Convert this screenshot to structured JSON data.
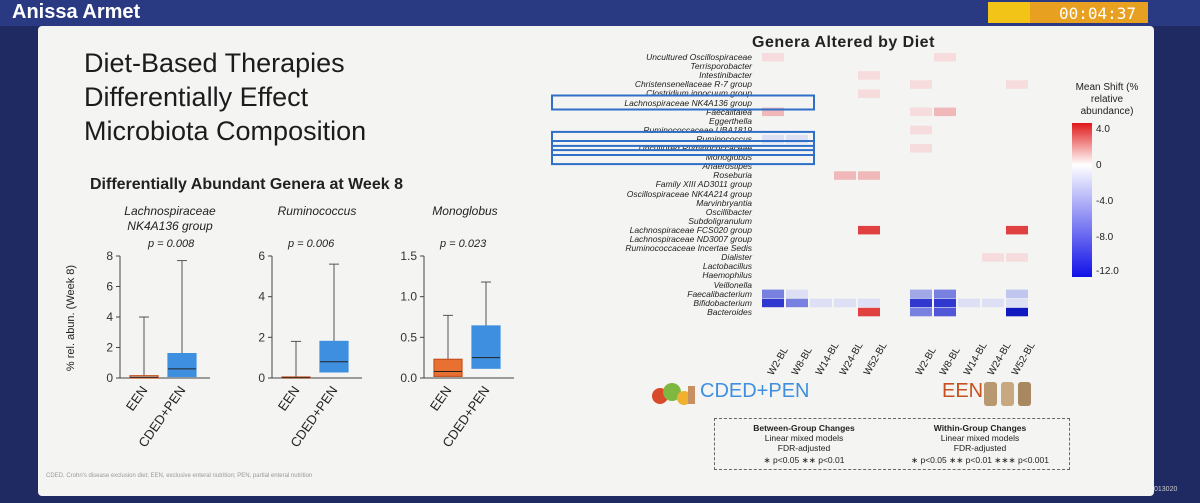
{
  "window": {
    "speaker": "Anissa Armet",
    "timer": "00:04:37"
  },
  "slide": {
    "title": [
      "Diet-Based Therapies",
      "Differentially Effect",
      "Microbiota Composition"
    ],
    "subtitle": "Differentially Abundant Genera at Week 8",
    "footnote": "CDED, Crohn's disease exclusion diet; EEN, exclusive enteral nutrition; PEN, partial enteral nutrition",
    "slide_number": "013020"
  },
  "heatmap": {
    "title": "Genera Altered by Diet",
    "genera": [
      "Uncultured Oscillospiraceae",
      "Terrisporobacter",
      "Intestinibacter",
      "Christensenellaceae R-7 group",
      "Clostridium innocuum group",
      "Lachnospiraceae NK4A136 group",
      "Faecalitalea",
      "Eggerthella",
      "Ruminococcaceae UBA1819",
      "Ruminococcus",
      "Uncultured Ruminococcaceae",
      "Monoglobus",
      "Anaerostipes",
      "Roseburia",
      "Family XIII AD3011 group",
      "Oscillospiraceae NK4A214 group",
      "Marvinbryantia",
      "Oscillibacter",
      "Subdoligranulum",
      "Lachnospiraceae FCS020 group",
      "Lachnospiraceae ND3007 group",
      "Ruminococcaceae Incertae Sedis",
      "Dialister",
      "Lactobacillus",
      "Haemophilus",
      "Veillonella",
      "Faecalibacterium",
      "Bifidobacterium",
      "Bacteroides"
    ],
    "highlighted": [
      "Lachnospiraceae NK4A136 group",
      "Ruminococcus",
      "Uncultured Ruminococcaceae",
      "Monoglobus"
    ],
    "columns": [
      "W2-BL",
      "W8-BL",
      "W14-BL",
      "W24-BL",
      "W52-BL",
      "W2-BL",
      "W8-BL",
      "W14-BL",
      "W24-BL",
      "W52-BL"
    ],
    "groups": [
      {
        "label": "CDED+PEN",
        "color": "#3f8fe0"
      },
      {
        "label": "EEN",
        "color": "#c8501e"
      }
    ],
    "legend": {
      "title": "Mean Shift (% relative abundance)",
      "ticks": [
        "4.0",
        "0",
        "-4.0",
        "-8.0",
        "-12.0"
      ]
    },
    "notes": {
      "between": {
        "title": "Between-Group Changes",
        "l1": "Linear mixed models",
        "l2": "FDR-adjusted",
        "l3": "∗ p<0.05    ∗∗ p<0.01"
      },
      "within": {
        "title": "Within-Group Changes",
        "l1": "Linear mixed models",
        "l2": "FDR-adjusted",
        "l3": "∗ p<0.05    ∗∗ p<0.01    ∗∗∗ p<0.001"
      }
    },
    "cells": [
      [
        1,
        0,
        0,
        0,
        0,
        0,
        1,
        0,
        0,
        0
      ],
      [
        0,
        0,
        0,
        0,
        0,
        0,
        0,
        0,
        0,
        0
      ],
      [
        0,
        0,
        0,
        0,
        1,
        0,
        0,
        0,
        0,
        0
      ],
      [
        0,
        0,
        0,
        0,
        0,
        1,
        0,
        0,
        0,
        1
      ],
      [
        0,
        0,
        0,
        0,
        1,
        0,
        0,
        0,
        0,
        0
      ],
      [
        0,
        0,
        0,
        0,
        0,
        0,
        0,
        0,
        0,
        0
      ],
      [
        2,
        0,
        0,
        0,
        0,
        1,
        2,
        0,
        0,
        0
      ],
      [
        0,
        0,
        0,
        0,
        0,
        0,
        0,
        0,
        0,
        0
      ],
      [
        0,
        0,
        0,
        0,
        0,
        1,
        0,
        0,
        0,
        0
      ],
      [
        -1,
        -1,
        0,
        0,
        0,
        0,
        0,
        0,
        0,
        0
      ],
      [
        0,
        0,
        0,
        0,
        0,
        1,
        0,
        0,
        0,
        0
      ],
      [
        0,
        0,
        0,
        0,
        0,
        0,
        0,
        0,
        0,
        0
      ],
      [
        0,
        0,
        0,
        0,
        0,
        0,
        0,
        0,
        0,
        0
      ],
      [
        0,
        0,
        0,
        2,
        2,
        0,
        0,
        0,
        0,
        0
      ],
      [
        0,
        0,
        0,
        0,
        0,
        0,
        0,
        0,
        0,
        0
      ],
      [
        0,
        0,
        0,
        0,
        0,
        0,
        0,
        0,
        0,
        0
      ],
      [
        0,
        0,
        0,
        0,
        0,
        0,
        0,
        0,
        0,
        0
      ],
      [
        0,
        0,
        0,
        0,
        0,
        0,
        0,
        0,
        0,
        0
      ],
      [
        0,
        0,
        0,
        0,
        0,
        0,
        0,
        0,
        0,
        0
      ],
      [
        0,
        0,
        0,
        0,
        4,
        0,
        0,
        0,
        0,
        4
      ],
      [
        0,
        0,
        0,
        0,
        0,
        0,
        0,
        0,
        0,
        0
      ],
      [
        0,
        0,
        0,
        0,
        0,
        0,
        0,
        0,
        0,
        0
      ],
      [
        0,
        0,
        0,
        0,
        0,
        0,
        0,
        0,
        1,
        1
      ],
      [
        0,
        0,
        0,
        0,
        0,
        0,
        0,
        0,
        0,
        0
      ],
      [
        0,
        0,
        0,
        0,
        0,
        0,
        0,
        0,
        0,
        0
      ],
      [
        0,
        0,
        0,
        0,
        0,
        0,
        0,
        0,
        0,
        0
      ],
      [
        -4,
        -1,
        0,
        0,
        0,
        -3,
        -4,
        0,
        0,
        -2
      ],
      [
        -6,
        -4,
        -1,
        -1,
        -1,
        -6,
        -6,
        -1,
        -1,
        -1
      ],
      [
        0,
        0,
        0,
        0,
        5,
        -4,
        -5,
        0,
        0,
        -8
      ]
    ]
  },
  "boxplots": {
    "ylabel": "% rel. abun. (Week 8)",
    "categories": [
      "EEN",
      "CDED+PEN"
    ],
    "panels": [
      {
        "title": "Lachnospiraceae NK4A136 group",
        "p": "p = 0.008",
        "yticks": [
          "0",
          "2",
          "4",
          "6",
          "8"
        ],
        "ymax": 8,
        "een": {
          "q1": 0,
          "median": 0.05,
          "q3": 0.15,
          "max": 4.0
        },
        "cded": {
          "q1": 0.1,
          "median": 0.6,
          "q3": 1.6,
          "max": 7.7
        }
      },
      {
        "title": "Ruminococcus",
        "p": "p = 0.006",
        "yticks": [
          "0",
          "2",
          "4",
          "6"
        ],
        "ymax": 6,
        "een": {
          "q1": 0,
          "median": 0.01,
          "q3": 0.05,
          "max": 1.8
        },
        "cded": {
          "q1": 0.3,
          "median": 0.8,
          "q3": 1.8,
          "max": 5.6
        }
      },
      {
        "title": "Monoglobus",
        "p": "p = 0.023",
        "yticks": [
          "0.0",
          "0.5",
          "1.0",
          "1.5"
        ],
        "ymax": 1.5,
        "een": {
          "q1": 0.02,
          "median": 0.08,
          "q3": 0.23,
          "max": 0.77
        },
        "cded": {
          "q1": 0.12,
          "median": 0.25,
          "q3": 0.64,
          "max": 1.18
        }
      }
    ]
  }
}
